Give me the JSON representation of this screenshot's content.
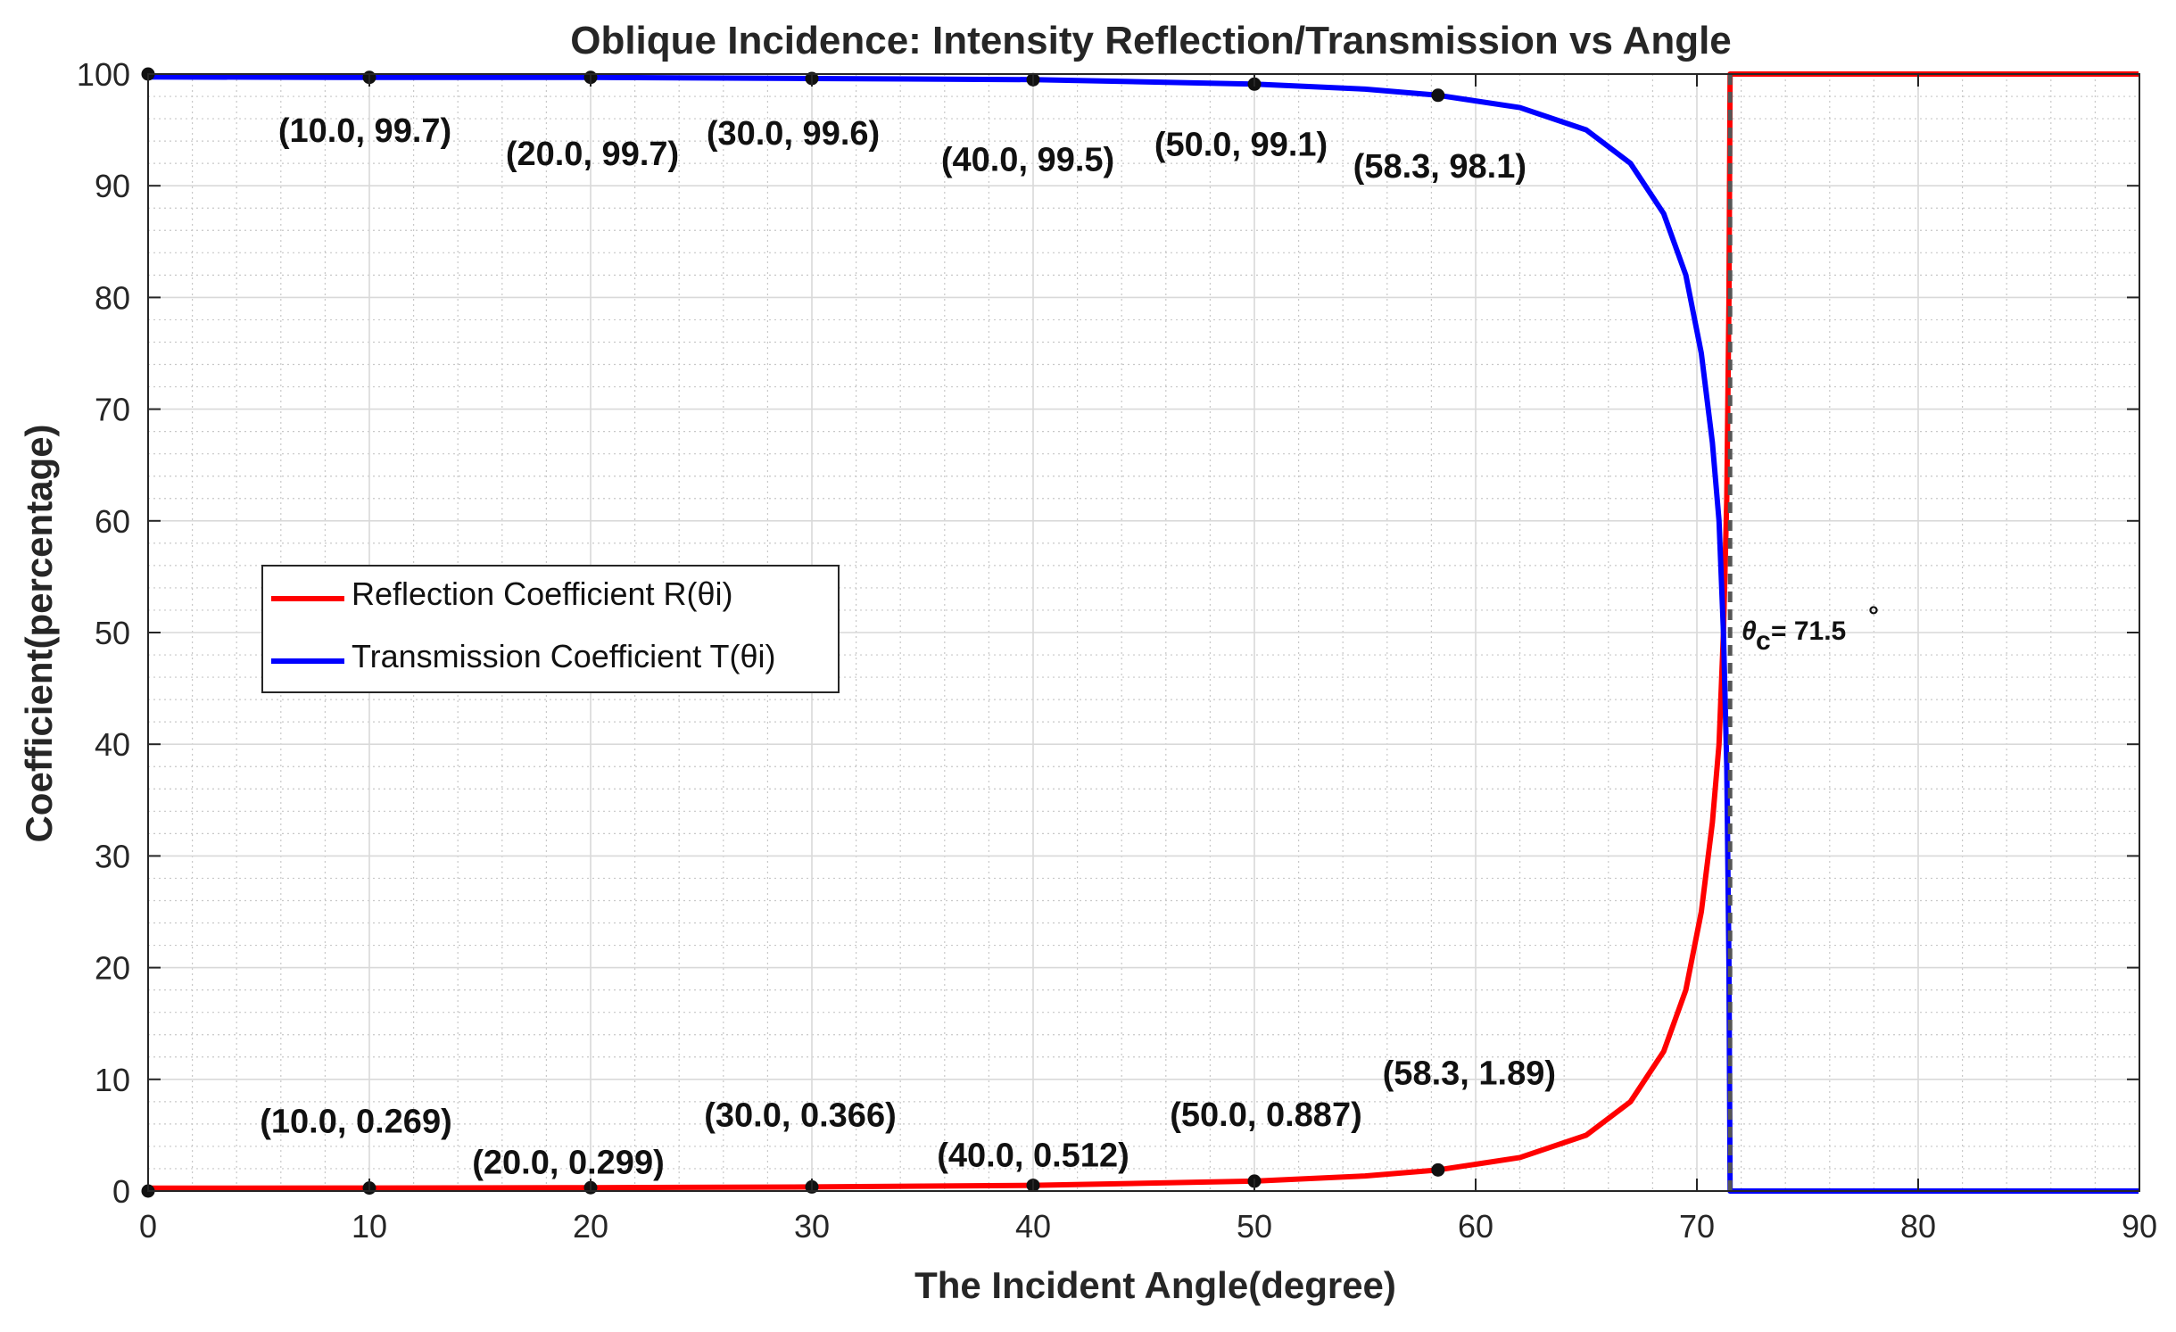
{
  "chart_data": {
    "type": "line",
    "title": "Oblique Incidence: Intensity Reflection/Transmission vs Angle",
    "xlabel": "The Incident Angle(degree)",
    "ylabel": "Coefficient(percentage)",
    "xlim": [
      0,
      90
    ],
    "ylim": [
      0,
      100
    ],
    "xticks": [
      "0",
      "10",
      "20",
      "30",
      "40",
      "50",
      "60",
      "70",
      "80",
      "90"
    ],
    "yticks": [
      "0",
      "10",
      "20",
      "30",
      "40",
      "50",
      "60",
      "70",
      "80",
      "90",
      "100"
    ],
    "grid": true,
    "legend_position": "middle-left",
    "critical_angle": 71.5,
    "critical_angle_label": "= 71.5",
    "series": [
      {
        "name": "Reflection Coefficient  R(θi)",
        "color": "#ff0000",
        "x": [
          0,
          10,
          20,
          30,
          40,
          50,
          55,
          58.3,
          62,
          65,
          67,
          68.5,
          69.5,
          70.2,
          70.7,
          71.0,
          71.2,
          71.35,
          71.45,
          71.5,
          90
        ],
        "values": [
          0.26,
          0.269,
          0.299,
          0.366,
          0.512,
          0.887,
          1.35,
          1.89,
          3.0,
          5.0,
          8.0,
          12.5,
          18.0,
          25.0,
          33.0,
          40.0,
          50.0,
          62.0,
          80.0,
          100,
          100
        ]
      },
      {
        "name": "Transmission Coefficient  T(θi)",
        "color": "#0000ff",
        "x": [
          0,
          10,
          20,
          30,
          40,
          50,
          55,
          58.3,
          62,
          65,
          67,
          68.5,
          69.5,
          70.2,
          70.7,
          71.0,
          71.2,
          71.35,
          71.45,
          71.5,
          90
        ],
        "values": [
          99.74,
          99.7,
          99.7,
          99.6,
          99.5,
          99.1,
          98.65,
          98.1,
          97.0,
          95.0,
          92.0,
          87.5,
          82.0,
          75.0,
          67.0,
          60.0,
          50.0,
          38.0,
          20.0,
          0,
          0
        ]
      }
    ],
    "marked_points": [
      {
        "series": 0,
        "x": 10.0,
        "y": 0.269,
        "label": "(10.0, 0.269)"
      },
      {
        "series": 0,
        "x": 20.0,
        "y": 0.299,
        "label": "(20.0, 0.299)"
      },
      {
        "series": 0,
        "x": 30.0,
        "y": 0.366,
        "label": "(30.0, 0.366)"
      },
      {
        "series": 0,
        "x": 40.0,
        "y": 0.512,
        "label": "(40.0, 0.512)"
      },
      {
        "series": 0,
        "x": 50.0,
        "y": 0.887,
        "label": "(50.0, 0.887)"
      },
      {
        "series": 0,
        "x": 58.3,
        "y": 1.89,
        "label": "(58.3, 1.89)"
      },
      {
        "series": 1,
        "x": 10.0,
        "y": 99.7,
        "label": "(10.0, 99.7)"
      },
      {
        "series": 1,
        "x": 20.0,
        "y": 99.7,
        "label": "(20.0, 99.7)"
      },
      {
        "series": 1,
        "x": 30.0,
        "y": 99.6,
        "label": "(30.0, 99.6)"
      },
      {
        "series": 1,
        "x": 40.0,
        "y": 99.5,
        "label": "(40.0, 99.5)"
      },
      {
        "series": 1,
        "x": 50.0,
        "y": 99.1,
        "label": "(50.0, 99.1)"
      },
      {
        "series": 1,
        "x": 58.3,
        "y": 98.1,
        "label": "(58.3, 98.1)"
      }
    ],
    "extra_markers": [
      {
        "x": 0,
        "y": 100
      },
      {
        "x": 0,
        "y": 0
      }
    ]
  }
}
